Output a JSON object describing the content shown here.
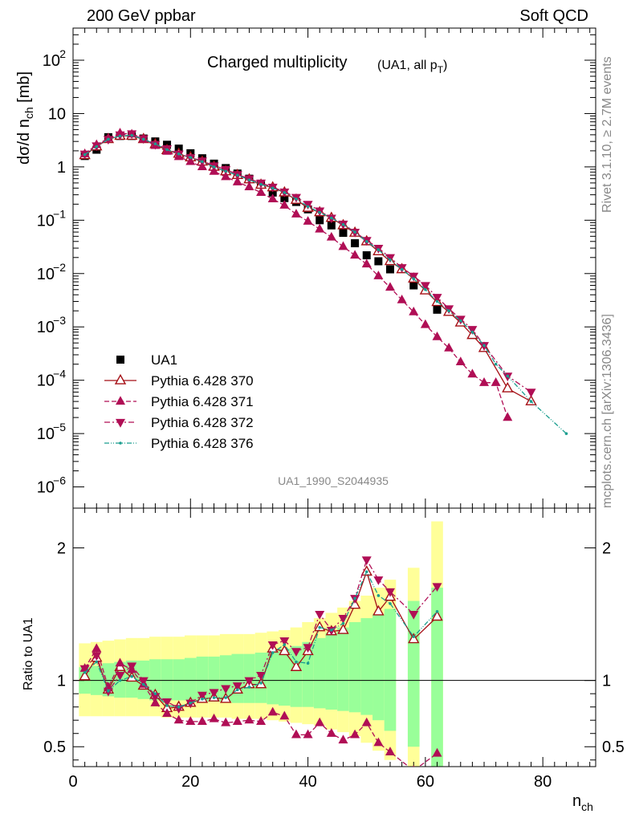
{
  "header": {
    "left": "200 GeV ppbar",
    "right": "Soft QCD"
  },
  "side_text": {
    "rivet": "Rivet 3.1.10, ≥ 2.7M events",
    "mcplots": "mcplots.cern.ch [arXiv:1306.3436]"
  },
  "watermark": "UA1_1990_S2044935",
  "chart_data": [
    {
      "type": "scatter",
      "panel": "main",
      "title": "Charged multiplicity",
      "title_suffix": "(UA1, all p",
      "title_suffix_sub": "T",
      "title_suffix_end": ")",
      "ylabel": "dσ/d n",
      "ylabel_sub": "ch",
      "ylabel_unit": " [mb]",
      "yscale": "log",
      "ylim": [
        4e-07,
        400
      ],
      "xlim": [
        0,
        89
      ],
      "yticks": [
        {
          "v": 100,
          "t": "10",
          "e": "2"
        },
        {
          "v": 10,
          "t": "10",
          "e": ""
        },
        {
          "v": 1,
          "t": "1",
          "e": ""
        },
        {
          "v": 0.1,
          "t": "10",
          "e": "−1"
        },
        {
          "v": 0.01,
          "t": "10",
          "e": "−2"
        },
        {
          "v": 0.001,
          "t": "10",
          "e": "−3"
        },
        {
          "v": 0.0001,
          "t": "10",
          "e": "−4"
        },
        {
          "v": 1e-05,
          "t": "10",
          "e": "−5"
        },
        {
          "v": 1e-06,
          "t": "10",
          "e": "−6"
        }
      ],
      "legend_position": "left-middle",
      "series": [
        {
          "name": "UA1",
          "color": "#000000",
          "marker": "square",
          "line": "none",
          "x": [
            2,
            4,
            6,
            8,
            10,
            12,
            14,
            16,
            18,
            20,
            22,
            24,
            26,
            28,
            30,
            32,
            34,
            36,
            38,
            40,
            42,
            44,
            46,
            48,
            50,
            52,
            54,
            58,
            62
          ],
          "y": [
            1.6,
            2.1,
            3.6,
            3.8,
            3.8,
            3.4,
            3.0,
            2.6,
            2.2,
            1.8,
            1.45,
            1.15,
            0.95,
            0.75,
            0.6,
            0.48,
            0.33,
            0.26,
            0.22,
            0.16,
            0.1,
            0.08,
            0.058,
            0.037,
            0.022,
            0.017,
            0.012,
            0.006,
            0.0021
          ]
        },
        {
          "name": "Pythia 6.428 370",
          "color": "#a50f15",
          "marker": "open-triangle-up",
          "line": "solid",
          "x": [
            2,
            4,
            6,
            8,
            10,
            12,
            14,
            16,
            18,
            20,
            22,
            24,
            26,
            28,
            30,
            32,
            34,
            36,
            38,
            40,
            42,
            44,
            46,
            48,
            50,
            52,
            54,
            56,
            58,
            60,
            62,
            64,
            66,
            68,
            70,
            74,
            78
          ],
          "y": [
            1.65,
            2.4,
            3.3,
            3.8,
            3.8,
            3.3,
            2.65,
            2.05,
            1.75,
            1.5,
            1.25,
            1.0,
            0.82,
            0.7,
            0.58,
            0.46,
            0.41,
            0.33,
            0.24,
            0.17,
            0.14,
            0.11,
            0.08,
            0.058,
            0.04,
            0.026,
            0.017,
            0.012,
            0.008,
            0.0048,
            0.0029,
            0.0019,
            0.0012,
            0.0007,
            0.0004,
            7e-05,
            4e-05
          ]
        },
        {
          "name": "Pythia 6.428 371",
          "color": "#b00e55",
          "marker": "triangle-up",
          "line": "dashed",
          "x": [
            2,
            4,
            6,
            8,
            10,
            12,
            14,
            16,
            18,
            20,
            22,
            24,
            26,
            28,
            30,
            32,
            34,
            36,
            38,
            40,
            42,
            44,
            46,
            48,
            50,
            52,
            54,
            56,
            58,
            60,
            62,
            64,
            66,
            68,
            70,
            72,
            74
          ],
          "y": [
            1.75,
            2.6,
            3.4,
            4.3,
            4.1,
            3.3,
            2.5,
            1.95,
            1.55,
            1.25,
            1.0,
            0.82,
            0.65,
            0.52,
            0.42,
            0.33,
            0.25,
            0.19,
            0.13,
            0.095,
            0.068,
            0.048,
            0.032,
            0.022,
            0.015,
            0.009,
            0.0055,
            0.0032,
            0.0019,
            0.0011,
            0.00065,
            0.0004,
            0.00022,
            0.00013,
            9e-05,
            9e-05,
            2e-05
          ]
        },
        {
          "name": "Pythia 6.428 372",
          "color": "#b00e55",
          "marker": "triangle-down",
          "line": "dashdot",
          "x": [
            2,
            4,
            6,
            8,
            10,
            12,
            14,
            16,
            18,
            20,
            22,
            24,
            26,
            28,
            30,
            32,
            34,
            36,
            38,
            40,
            42,
            44,
            46,
            48,
            50,
            52,
            54,
            56,
            58,
            60,
            62,
            64,
            66,
            68,
            70,
            74,
            78
          ],
          "y": [
            1.75,
            2.5,
            3.3,
            4.0,
            4.2,
            3.4,
            2.65,
            2.2,
            1.75,
            1.5,
            1.3,
            1.05,
            0.9,
            0.72,
            0.6,
            0.5,
            0.42,
            0.34,
            0.27,
            0.2,
            0.15,
            0.11,
            0.085,
            0.06,
            0.042,
            0.03,
            0.02,
            0.013,
            0.009,
            0.006,
            0.0036,
            0.0022,
            0.0014,
            0.0009,
            0.00045,
            0.00012,
            6e-05
          ]
        },
        {
          "name": "Pythia 6.428 376",
          "color": "#1a9e8f",
          "marker": "star",
          "line": "dashdotdot",
          "x": [
            2,
            4,
            6,
            8,
            10,
            12,
            14,
            16,
            18,
            20,
            22,
            24,
            26,
            28,
            30,
            32,
            34,
            36,
            38,
            40,
            42,
            44,
            46,
            48,
            50,
            52,
            54,
            56,
            58,
            60,
            62,
            64,
            66,
            68,
            70,
            72,
            74,
            78,
            84
          ],
          "y": [
            1.7,
            2.4,
            3.3,
            3.8,
            3.9,
            3.3,
            2.7,
            2.1,
            1.75,
            1.5,
            1.25,
            1.0,
            0.83,
            0.7,
            0.57,
            0.47,
            0.4,
            0.33,
            0.25,
            0.18,
            0.14,
            0.11,
            0.083,
            0.06,
            0.04,
            0.028,
            0.018,
            0.012,
            0.008,
            0.005,
            0.003,
            0.002,
            0.0013,
            0.0008,
            0.00045,
            0.0002,
            0.00012,
            4e-05,
            1e-05
          ]
        }
      ]
    },
    {
      "type": "scatter",
      "panel": "ratio",
      "ylabel": "Ratio to UA1",
      "xlabel": "n",
      "xlabel_sub": "ch",
      "ylim": [
        0.35,
        2.3
      ],
      "xlim": [
        0,
        89
      ],
      "xticks": [
        0,
        20,
        40,
        60,
        80
      ],
      "yticks": [
        0.5,
        1,
        2
      ],
      "bands": {
        "x": [
          2,
          4,
          6,
          8,
          10,
          12,
          14,
          16,
          18,
          20,
          22,
          24,
          26,
          28,
          30,
          32,
          34,
          36,
          38,
          40,
          42,
          44,
          46,
          48,
          50,
          52,
          54,
          58,
          62
        ],
        "green_lo": [
          0.9,
          0.89,
          0.88,
          0.87,
          0.87,
          0.86,
          0.85,
          0.85,
          0.85,
          0.85,
          0.84,
          0.84,
          0.84,
          0.83,
          0.83,
          0.83,
          0.82,
          0.81,
          0.8,
          0.8,
          0.79,
          0.78,
          0.77,
          0.76,
          0.74,
          0.7,
          0.62,
          0.5,
          0.35
        ],
        "green_hi": [
          1.1,
          1.11,
          1.13,
          1.14,
          1.15,
          1.15,
          1.16,
          1.16,
          1.16,
          1.17,
          1.18,
          1.18,
          1.19,
          1.2,
          1.2,
          1.21,
          1.22,
          1.24,
          1.26,
          1.29,
          1.32,
          1.36,
          1.4,
          1.44,
          1.47,
          1.5,
          1.54,
          1.6,
          1.7
        ],
        "yellow_lo": [
          0.73,
          0.73,
          0.73,
          0.73,
          0.73,
          0.73,
          0.73,
          0.72,
          0.72,
          0.72,
          0.72,
          0.72,
          0.72,
          0.71,
          0.71,
          0.71,
          0.7,
          0.69,
          0.68,
          0.67,
          0.66,
          0.63,
          0.61,
          0.58,
          0.53,
          0.47,
          0.4,
          0.35,
          0.35
        ],
        "yellow_hi": [
          1.28,
          1.29,
          1.3,
          1.31,
          1.32,
          1.32,
          1.33,
          1.33,
          1.33,
          1.34,
          1.34,
          1.34,
          1.35,
          1.35,
          1.35,
          1.36,
          1.37,
          1.38,
          1.4,
          1.44,
          1.47,
          1.51,
          1.55,
          1.6,
          1.64,
          1.7,
          1.76,
          1.85,
          2.2
        ]
      },
      "series": [
        {
          "name": "Pythia 6.428 370",
          "color": "#a50f15",
          "marker": "open-triangle-up",
          "line": "solid",
          "x": [
            2,
            4,
            6,
            8,
            10,
            12,
            14,
            16,
            18,
            20,
            22,
            24,
            26,
            28,
            30,
            32,
            34,
            36,
            38,
            40,
            42,
            44,
            46,
            48,
            50,
            52,
            54,
            58,
            62
          ],
          "y": [
            1.03,
            1.17,
            0.93,
            1.1,
            1.02,
            0.96,
            0.89,
            0.79,
            0.8,
            0.83,
            0.86,
            0.87,
            0.86,
            0.93,
            0.97,
            0.97,
            1.24,
            1.22,
            1.1,
            1.22,
            1.4,
            1.37,
            1.38,
            1.57,
            1.82,
            1.52,
            1.63,
            1.31,
            1.48
          ]
        },
        {
          "name": "Pythia 6.428 371",
          "color": "#b00e55",
          "marker": "triangle-up",
          "line": "dashed",
          "x": [
            2,
            4,
            6,
            8,
            10,
            12,
            14,
            16,
            18,
            20,
            22,
            24,
            26,
            28,
            30,
            32,
            34,
            36,
            38,
            40,
            42,
            44,
            46,
            48,
            50,
            52,
            54,
            58,
            62
          ],
          "y": [
            1.09,
            1.24,
            0.95,
            1.13,
            1.08,
            0.97,
            0.83,
            0.75,
            0.7,
            0.69,
            0.69,
            0.71,
            0.68,
            0.69,
            0.7,
            0.69,
            0.76,
            0.73,
            0.59,
            0.59,
            0.68,
            0.6,
            0.55,
            0.59,
            0.68,
            0.53,
            0.46,
            0.32,
            0.45
          ]
        },
        {
          "name": "Pythia 6.428 372",
          "color": "#b00e55",
          "marker": "triangle-down",
          "line": "dashdot",
          "x": [
            2,
            4,
            6,
            8,
            10,
            12,
            14,
            16,
            18,
            20,
            22,
            24,
            26,
            28,
            30,
            32,
            34,
            36,
            38,
            40,
            42,
            44,
            46,
            48,
            50,
            52,
            54,
            58,
            62
          ],
          "y": [
            1.09,
            1.19,
            0.92,
            1.04,
            1.11,
            1.0,
            0.88,
            0.84,
            0.79,
            0.83,
            0.89,
            0.91,
            0.94,
            0.96,
            1.0,
            1.04,
            1.27,
            1.3,
            1.22,
            1.25,
            1.5,
            1.38,
            1.47,
            1.62,
            1.91,
            1.76,
            1.67,
            1.5,
            1.71
          ]
        },
        {
          "name": "Pythia 6.428 376",
          "color": "#1a9e8f",
          "marker": "star",
          "line": "dashdotdot",
          "x": [
            2,
            4,
            6,
            8,
            10,
            12,
            14,
            16,
            18,
            20,
            22,
            24,
            26,
            28,
            30,
            32,
            34,
            36,
            38,
            40,
            42,
            44,
            46,
            48,
            50,
            52,
            54,
            58,
            62
          ],
          "y": [
            1.06,
            1.14,
            0.92,
            1.0,
            1.03,
            0.97,
            0.9,
            0.81,
            0.8,
            0.83,
            0.86,
            0.87,
            0.87,
            0.93,
            0.95,
            0.98,
            1.21,
            1.27,
            1.14,
            1.13,
            1.4,
            1.38,
            1.43,
            1.62,
            1.82,
            1.64,
            1.58,
            1.33,
            1.52
          ]
        }
      ]
    }
  ]
}
